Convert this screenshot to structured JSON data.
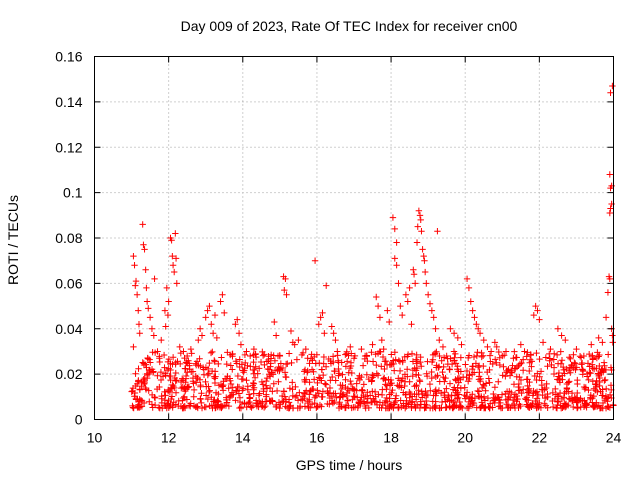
{
  "chart_data": {
    "type": "scatter",
    "title": "Day 009 of 2023, Rate Of TEC Index for receiver cn00",
    "xlabel": "GPS time / hours",
    "ylabel": "ROTI / TECUs",
    "xlim": [
      10,
      24
    ],
    "ylim": [
      0,
      0.16
    ],
    "x_ticks": [
      10,
      12,
      14,
      16,
      18,
      20,
      22,
      24
    ],
    "y_ticks": [
      0,
      0.02,
      0.04,
      0.06,
      0.08,
      0.1,
      0.12,
      0.14,
      0.16
    ],
    "x_tick_labels": [
      "10",
      "12",
      "14",
      "16",
      "18",
      "20",
      "22",
      "24"
    ],
    "y_tick_labels": [
      "0",
      "0.02",
      "0.04",
      "0.06",
      "0.08",
      "0.1",
      "0.12",
      "0.14",
      "0.16"
    ],
    "grid": true,
    "marker": "+",
    "color": "#ff0000",
    "background_band": {
      "x_range": [
        11,
        24
      ],
      "y_range": [
        0.005,
        0.03
      ],
      "count": 1400,
      "note": "dense cloud of ROTI points continuously spanning 11-24 h"
    },
    "series": [
      {
        "name": "ROTI",
        "points": [
          [
            11.05,
            0.072
          ],
          [
            11.08,
            0.068
          ],
          [
            11.1,
            0.059
          ],
          [
            11.12,
            0.061
          ],
          [
            11.15,
            0.055
          ],
          [
            11.18,
            0.048
          ],
          [
            11.2,
            0.042
          ],
          [
            11.22,
            0.038
          ],
          [
            11.05,
            0.032
          ],
          [
            11.3,
            0.086
          ],
          [
            11.32,
            0.077
          ],
          [
            11.35,
            0.075
          ],
          [
            11.38,
            0.066
          ],
          [
            11.4,
            0.058
          ],
          [
            11.42,
            0.052
          ],
          [
            11.45,
            0.049
          ],
          [
            11.5,
            0.045
          ],
          [
            11.55,
            0.04
          ],
          [
            11.6,
            0.037
          ],
          [
            11.62,
            0.062
          ],
          [
            11.7,
            0.03
          ],
          [
            11.75,
            0.027
          ],
          [
            11.8,
            0.035
          ],
          [
            11.9,
            0.048
          ],
          [
            11.92,
            0.041
          ],
          [
            11.95,
            0.058
          ],
          [
            11.98,
            0.046
          ],
          [
            12.0,
            0.052
          ],
          [
            12.05,
            0.08
          ],
          [
            12.08,
            0.079
          ],
          [
            12.1,
            0.072
          ],
          [
            12.12,
            0.068
          ],
          [
            12.15,
            0.065
          ],
          [
            12.18,
            0.082
          ],
          [
            12.2,
            0.071
          ],
          [
            12.22,
            0.06
          ],
          [
            12.3,
            0.032
          ],
          [
            12.4,
            0.03
          ],
          [
            12.5,
            0.028
          ],
          [
            12.6,
            0.031
          ],
          [
            12.8,
            0.035
          ],
          [
            12.85,
            0.04
          ],
          [
            12.9,
            0.037
          ],
          [
            13.0,
            0.045
          ],
          [
            13.05,
            0.048
          ],
          [
            13.1,
            0.05
          ],
          [
            13.15,
            0.042
          ],
          [
            13.2,
            0.038
          ],
          [
            13.25,
            0.046
          ],
          [
            13.3,
            0.036
          ],
          [
            13.4,
            0.052
          ],
          [
            13.45,
            0.055
          ],
          [
            13.5,
            0.047
          ],
          [
            13.8,
            0.042
          ],
          [
            13.85,
            0.044
          ],
          [
            13.9,
            0.038
          ],
          [
            13.95,
            0.033
          ],
          [
            14.1,
            0.03
          ],
          [
            14.2,
            0.028
          ],
          [
            14.3,
            0.031
          ],
          [
            14.85,
            0.043
          ],
          [
            14.9,
            0.037
          ],
          [
            14.95,
            0.028
          ],
          [
            15.1,
            0.063
          ],
          [
            15.15,
            0.062
          ],
          [
            15.12,
            0.057
          ],
          [
            15.18,
            0.055
          ],
          [
            15.3,
            0.039
          ],
          [
            15.35,
            0.034
          ],
          [
            15.4,
            0.033
          ],
          [
            15.5,
            0.035
          ],
          [
            15.7,
            0.031
          ],
          [
            15.75,
            0.027
          ],
          [
            15.95,
            0.07
          ],
          [
            16.05,
            0.042
          ],
          [
            16.1,
            0.045
          ],
          [
            16.15,
            0.047
          ],
          [
            16.2,
            0.038
          ],
          [
            16.25,
            0.059
          ],
          [
            16.4,
            0.041
          ],
          [
            16.45,
            0.038
          ],
          [
            16.5,
            0.035
          ],
          [
            16.55,
            0.03
          ],
          [
            16.8,
            0.029
          ],
          [
            16.9,
            0.032
          ],
          [
            17.0,
            0.027
          ],
          [
            17.2,
            0.031
          ],
          [
            17.3,
            0.028
          ],
          [
            17.5,
            0.033
          ],
          [
            17.6,
            0.054
          ],
          [
            17.65,
            0.05
          ],
          [
            17.7,
            0.045
          ],
          [
            17.75,
            0.035
          ],
          [
            17.8,
            0.031
          ],
          [
            17.9,
            0.048
          ],
          [
            17.95,
            0.043
          ],
          [
            18.05,
            0.089
          ],
          [
            18.1,
            0.084
          ],
          [
            18.15,
            0.078
          ],
          [
            18.1,
            0.071
          ],
          [
            18.15,
            0.068
          ],
          [
            18.2,
            0.06
          ],
          [
            18.25,
            0.05
          ],
          [
            18.3,
            0.046
          ],
          [
            18.4,
            0.055
          ],
          [
            18.45,
            0.052
          ],
          [
            18.5,
            0.058
          ],
          [
            18.55,
            0.042
          ],
          [
            18.6,
            0.066
          ],
          [
            18.62,
            0.064
          ],
          [
            18.65,
            0.06
          ],
          [
            18.7,
            0.078
          ],
          [
            18.72,
            0.085
          ],
          [
            18.75,
            0.092
          ],
          [
            18.78,
            0.09
          ],
          [
            18.8,
            0.088
          ],
          [
            18.82,
            0.083
          ],
          [
            18.85,
            0.075
          ],
          [
            18.88,
            0.072
          ],
          [
            18.9,
            0.07
          ],
          [
            18.92,
            0.065
          ],
          [
            18.95,
            0.06
          ],
          [
            19.0,
            0.055
          ],
          [
            19.05,
            0.051
          ],
          [
            19.1,
            0.048
          ],
          [
            19.15,
            0.045
          ],
          [
            19.2,
            0.04
          ],
          [
            19.25,
            0.083
          ],
          [
            19.3,
            0.035
          ],
          [
            19.4,
            0.032
          ],
          [
            19.5,
            0.028
          ],
          [
            19.6,
            0.04
          ],
          [
            19.7,
            0.038
          ],
          [
            19.8,
            0.036
          ],
          [
            19.9,
            0.033
          ],
          [
            20.05,
            0.062
          ],
          [
            20.1,
            0.058
          ],
          [
            20.15,
            0.052
          ],
          [
            20.2,
            0.048
          ],
          [
            20.25,
            0.045
          ],
          [
            20.3,
            0.042
          ],
          [
            20.35,
            0.04
          ],
          [
            20.4,
            0.038
          ],
          [
            20.5,
            0.035
          ],
          [
            20.6,
            0.032
          ],
          [
            20.7,
            0.03
          ],
          [
            20.8,
            0.034
          ],
          [
            20.85,
            0.032
          ],
          [
            21.0,
            0.028
          ],
          [
            21.1,
            0.03
          ],
          [
            21.3,
            0.027
          ],
          [
            21.5,
            0.033
          ],
          [
            21.6,
            0.03
          ],
          [
            21.9,
            0.05
          ],
          [
            21.95,
            0.048
          ],
          [
            22.0,
            0.044
          ],
          [
            21.85,
            0.046
          ],
          [
            22.1,
            0.034
          ],
          [
            22.3,
            0.031
          ],
          [
            22.4,
            0.029
          ],
          [
            22.5,
            0.04
          ],
          [
            22.6,
            0.037
          ],
          [
            22.7,
            0.035
          ],
          [
            23.0,
            0.031
          ],
          [
            23.2,
            0.028
          ],
          [
            23.4,
            0.033
          ],
          [
            23.6,
            0.036
          ],
          [
            23.7,
            0.034
          ],
          [
            23.8,
            0.045
          ],
          [
            23.85,
            0.056
          ],
          [
            23.9,
            0.062
          ],
          [
            23.88,
            0.063
          ],
          [
            23.9,
            0.091
          ],
          [
            23.92,
            0.093
          ],
          [
            23.95,
            0.095
          ],
          [
            23.92,
            0.102
          ],
          [
            23.95,
            0.103
          ],
          [
            23.9,
            0.108
          ],
          [
            23.92,
            0.144
          ],
          [
            23.97,
            0.147
          ],
          [
            23.95,
            0.04
          ],
          [
            23.97,
            0.037
          ],
          [
            23.98,
            0.034
          ]
        ]
      }
    ]
  }
}
